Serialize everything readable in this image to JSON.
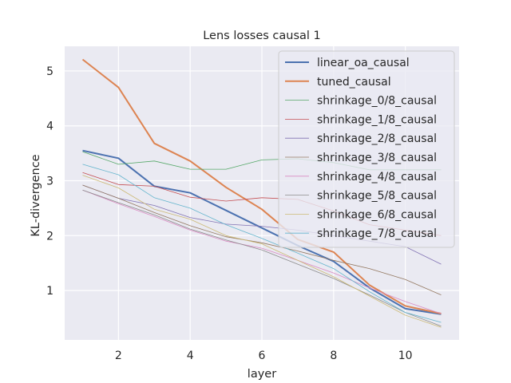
{
  "chart_data": {
    "type": "line",
    "title": "Lens losses causal 1",
    "xlabel": "layer",
    "ylabel": "KL-divergence",
    "xlim": [
      0.5,
      11.5
    ],
    "ylim": [
      0.1,
      5.45
    ],
    "xticks": [
      2,
      4,
      6,
      8,
      10
    ],
    "yticks": [
      1,
      2,
      3,
      4,
      5
    ],
    "grid": true,
    "legend_position": "top-right",
    "x": [
      1,
      2,
      3,
      4,
      5,
      6,
      7,
      8,
      9,
      10,
      11
    ],
    "series": [
      {
        "name": "linear_oa_causal",
        "color": "#4c72b0",
        "width": "thick",
        "values": [
          3.55,
          3.41,
          2.9,
          2.78,
          2.46,
          2.14,
          1.82,
          1.53,
          1.05,
          0.67,
          0.57
        ]
      },
      {
        "name": "tuned_causal",
        "color": "#dd8452",
        "width": "thick",
        "values": [
          5.21,
          4.7,
          3.68,
          3.36,
          2.88,
          2.48,
          1.93,
          1.7,
          1.1,
          0.72,
          0.58
        ]
      },
      {
        "name": "shrinkage_0/8_causal",
        "color": "#55a868",
        "width": "thin",
        "values": [
          3.53,
          3.3,
          3.36,
          3.21,
          3.21,
          3.38,
          3.4,
          3.33,
          3.2,
          3.2,
          3.2
        ]
      },
      {
        "name": "shrinkage_1/8_causal",
        "color": "#c44e52",
        "width": "thin",
        "values": [
          3.15,
          2.93,
          2.9,
          2.7,
          2.63,
          2.69,
          2.66,
          2.45,
          2.2,
          2.1,
          2.0
        ]
      },
      {
        "name": "shrinkage_2/8_causal",
        "color": "#8172b3",
        "width": "thin",
        "values": [
          2.92,
          2.68,
          2.55,
          2.33,
          2.21,
          2.17,
          2.1,
          2.0,
          1.9,
          1.8,
          1.48
        ]
      },
      {
        "name": "shrinkage_3/8_causal",
        "color": "#937860",
        "width": "thin",
        "values": [
          2.92,
          2.68,
          2.42,
          2.18,
          1.98,
          1.87,
          1.72,
          1.55,
          1.4,
          1.2,
          0.92
        ]
      },
      {
        "name": "shrinkage_4/8_causal",
        "color": "#da8bc3",
        "width": "thin",
        "values": [
          2.83,
          2.58,
          2.35,
          2.1,
          1.9,
          1.77,
          1.55,
          1.32,
          1.05,
          0.8,
          0.58
        ]
      },
      {
        "name": "shrinkage_5/8_causal",
        "color": "#8c8c8c",
        "width": "thin",
        "values": [
          2.83,
          2.6,
          2.38,
          2.12,
          1.92,
          1.74,
          1.48,
          1.22,
          0.92,
          0.6,
          0.35
        ]
      },
      {
        "name": "shrinkage_6/8_causal",
        "color": "#ccb974",
        "width": "thin",
        "values": [
          3.1,
          2.87,
          2.48,
          2.3,
          2.0,
          1.85,
          1.55,
          1.25,
          0.9,
          0.55,
          0.33
        ]
      },
      {
        "name": "shrinkage_7/8_causal",
        "color": "#64b5cd",
        "width": "thin",
        "values": [
          3.3,
          3.11,
          2.69,
          2.5,
          2.2,
          1.95,
          1.68,
          1.4,
          0.98,
          0.6,
          0.42
        ]
      }
    ]
  }
}
